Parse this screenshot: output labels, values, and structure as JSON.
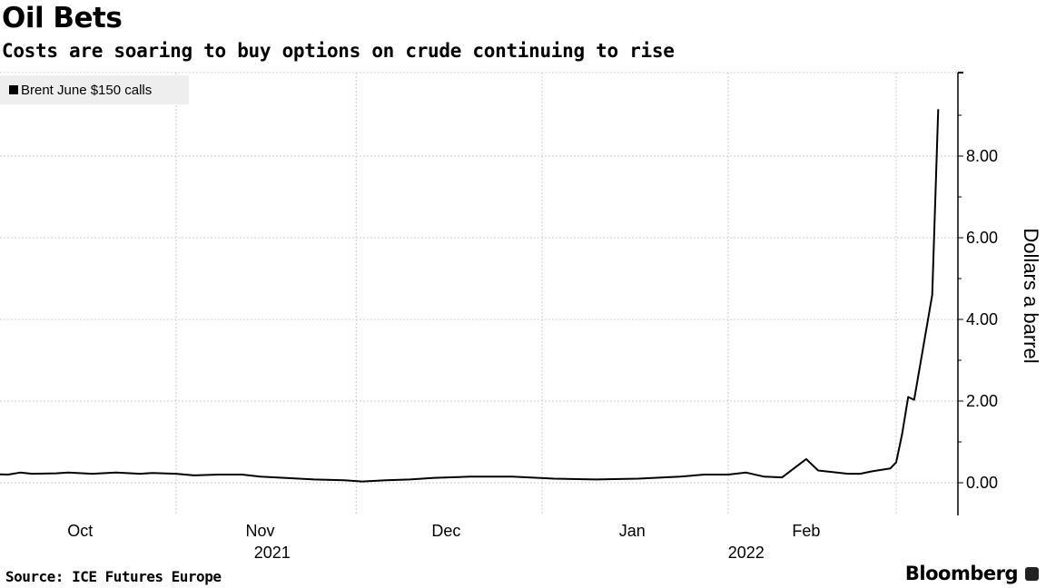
{
  "title": "Oil Bets",
  "subtitle": "Costs are soaring to buy options on crude continuing to rise",
  "source": "Source: ICE Futures Europe",
  "brand": "Bloomberg",
  "chart_data": {
    "type": "line",
    "ylabel": "Dollars a barrel",
    "ylim": [
      -0.8,
      10
    ],
    "xlim": [
      "2021-09-30",
      "2022-03-11"
    ],
    "y_ticks": [
      "0.00",
      "2.00",
      "4.00",
      "6.00",
      "8.00"
    ],
    "y_tick_values": [
      0,
      2,
      4,
      6,
      8
    ],
    "x_tick_labels": [
      {
        "label": "Oct",
        "date": "2021-10-16"
      },
      {
        "label": "Nov",
        "date": "2021-11-15"
      },
      {
        "label": "Dec",
        "date": "2021-12-16"
      },
      {
        "label": "Jan",
        "date": "2022-01-16"
      },
      {
        "label": "Feb",
        "date": "2022-02-14"
      }
    ],
    "x_year_labels": [
      {
        "label": "2021",
        "date": "2021-11-17"
      },
      {
        "label": "2022",
        "date": "2022-02-04"
      }
    ],
    "x_gridlines": [
      "2021-11-01",
      "2021-12-01",
      "2022-01-01",
      "2022-02-01",
      "2022-03-01"
    ],
    "grid": true,
    "legend_position": "top-left",
    "series": [
      {
        "name": "Brent June $150 calls",
        "color": "#000000",
        "points": [
          [
            "2021-09-30",
            0.22
          ],
          [
            "2021-10-04",
            0.2
          ],
          [
            "2021-10-06",
            0.25
          ],
          [
            "2021-10-08",
            0.22
          ],
          [
            "2021-10-12",
            0.23
          ],
          [
            "2021-10-14",
            0.25
          ],
          [
            "2021-10-18",
            0.22
          ],
          [
            "2021-10-22",
            0.25
          ],
          [
            "2021-10-26",
            0.22
          ],
          [
            "2021-10-28",
            0.24
          ],
          [
            "2021-11-01",
            0.22
          ],
          [
            "2021-11-04",
            0.18
          ],
          [
            "2021-11-08",
            0.2
          ],
          [
            "2021-11-12",
            0.2
          ],
          [
            "2021-11-15",
            0.15
          ],
          [
            "2021-11-19",
            0.12
          ],
          [
            "2021-11-24",
            0.08
          ],
          [
            "2021-11-29",
            0.06
          ],
          [
            "2021-12-02",
            0.03
          ],
          [
            "2021-12-06",
            0.06
          ],
          [
            "2021-12-10",
            0.08
          ],
          [
            "2021-12-14",
            0.12
          ],
          [
            "2021-12-20",
            0.15
          ],
          [
            "2021-12-27",
            0.15
          ],
          [
            "2022-01-03",
            0.1
          ],
          [
            "2022-01-10",
            0.08
          ],
          [
            "2022-01-17",
            0.1
          ],
          [
            "2022-01-24",
            0.15
          ],
          [
            "2022-01-28",
            0.2
          ],
          [
            "2022-02-01",
            0.2
          ],
          [
            "2022-02-04",
            0.25
          ],
          [
            "2022-02-07",
            0.15
          ],
          [
            "2022-02-10",
            0.13
          ],
          [
            "2022-02-14",
            0.58
          ],
          [
            "2022-02-16",
            0.3
          ],
          [
            "2022-02-21",
            0.22
          ],
          [
            "2022-02-23",
            0.22
          ],
          [
            "2022-02-25",
            0.28
          ],
          [
            "2022-02-28",
            0.35
          ],
          [
            "2022-03-01",
            0.5
          ],
          [
            "2022-03-02",
            1.2
          ],
          [
            "2022-03-03",
            2.1
          ],
          [
            "2022-03-04",
            2.03
          ],
          [
            "2022-03-07",
            4.6
          ],
          [
            "2022-03-08",
            9.15
          ]
        ]
      }
    ]
  }
}
